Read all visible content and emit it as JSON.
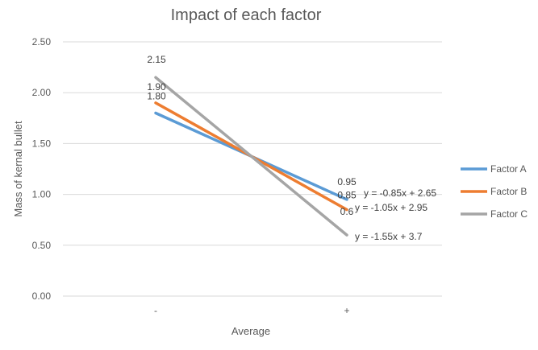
{
  "chart_data": {
    "type": "line",
    "title": "Impact of each factor",
    "xlabel": "Average",
    "ylabel": "Mass of kernal bullet",
    "categories": [
      "-",
      "+"
    ],
    "ylim": [
      0,
      2.5
    ],
    "y_ticks": [
      "0.00",
      "0.50",
      "1.00",
      "1.50",
      "2.00",
      "2.50"
    ],
    "grid": true,
    "legend_position": "right",
    "series": [
      {
        "name": "Factor A",
        "color": "#5b9bd5",
        "values": [
          1.8,
          0.95
        ],
        "data_labels": [
          "1.80",
          "0.95"
        ],
        "trendline": "y = -0.85x + 2.65"
      },
      {
        "name": "Factor B",
        "color": "#ed7d31",
        "values": [
          1.9,
          0.85
        ],
        "data_labels": [
          "1.90",
          "0.85"
        ],
        "trendline": "y = -1.05x + 2.95"
      },
      {
        "name": "Factor C",
        "color": "#a5a5a5",
        "values": [
          2.15,
          0.6
        ],
        "data_labels": [
          "2.15",
          "0.6"
        ],
        "trendline": "y = -1.55x + 3.7"
      }
    ]
  }
}
